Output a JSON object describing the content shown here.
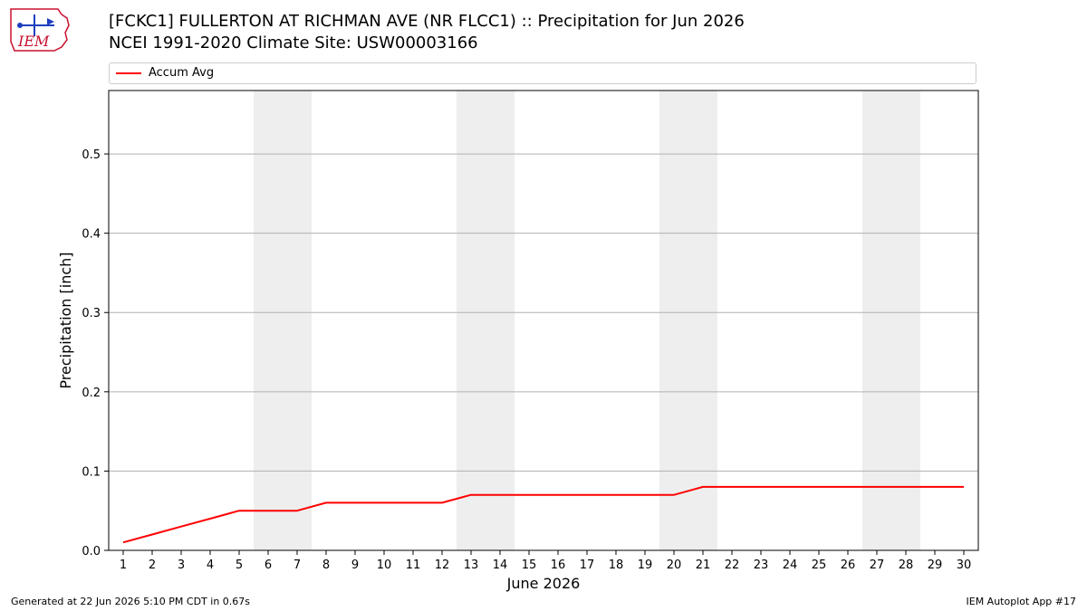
{
  "header": {
    "logo_text": "IEM",
    "title": "[FCKC1] FULLERTON AT RICHMAN AVE (NR FLCC1) :: Precipitation for Jun 2026",
    "subtitle": "NCEI 1991-2020 Climate Site: USW00003166"
  },
  "footer": {
    "generated": "Generated at 22 Jun 2026 5:10 PM CDT in 0.67s",
    "app": "IEM Autoplot App #17"
  },
  "colors": {
    "series": "#ff0000",
    "weekend_band": "#eeeeee",
    "grid": "#b0b0b0",
    "logo": "#c8102e",
    "logo_accent": "#1f3fbf"
  },
  "chart_data": {
    "type": "line",
    "xlabel": "June 2026",
    "ylabel": "Precipitation [inch]",
    "x": [
      1,
      2,
      3,
      4,
      5,
      6,
      7,
      8,
      9,
      10,
      11,
      12,
      13,
      14,
      15,
      16,
      17,
      18,
      19,
      20,
      21,
      22,
      23,
      24,
      25,
      26,
      27,
      28,
      29,
      30
    ],
    "xlim": [
      0.5,
      30.5
    ],
    "ylim": [
      0,
      0.58
    ],
    "yticks": [
      0.0,
      0.1,
      0.2,
      0.3,
      0.4,
      0.5
    ],
    "ytick_labels": [
      "0.0",
      "0.1",
      "0.2",
      "0.3",
      "0.4",
      "0.5"
    ],
    "grid": "horizontal",
    "legend": "top",
    "weekend_bands": [
      [
        6,
        7
      ],
      [
        13,
        14
      ],
      [
        20,
        21
      ],
      [
        27,
        28
      ]
    ],
    "series": [
      {
        "name": "Accum Avg",
        "values": [
          0.01,
          0.02,
          0.03,
          0.04,
          0.05,
          0.05,
          0.05,
          0.06,
          0.06,
          0.06,
          0.06,
          0.06,
          0.07,
          0.07,
          0.07,
          0.07,
          0.07,
          0.07,
          0.07,
          0.07,
          0.08,
          0.08,
          0.08,
          0.08,
          0.08,
          0.08,
          0.08,
          0.08,
          0.08,
          0.08
        ]
      }
    ]
  }
}
